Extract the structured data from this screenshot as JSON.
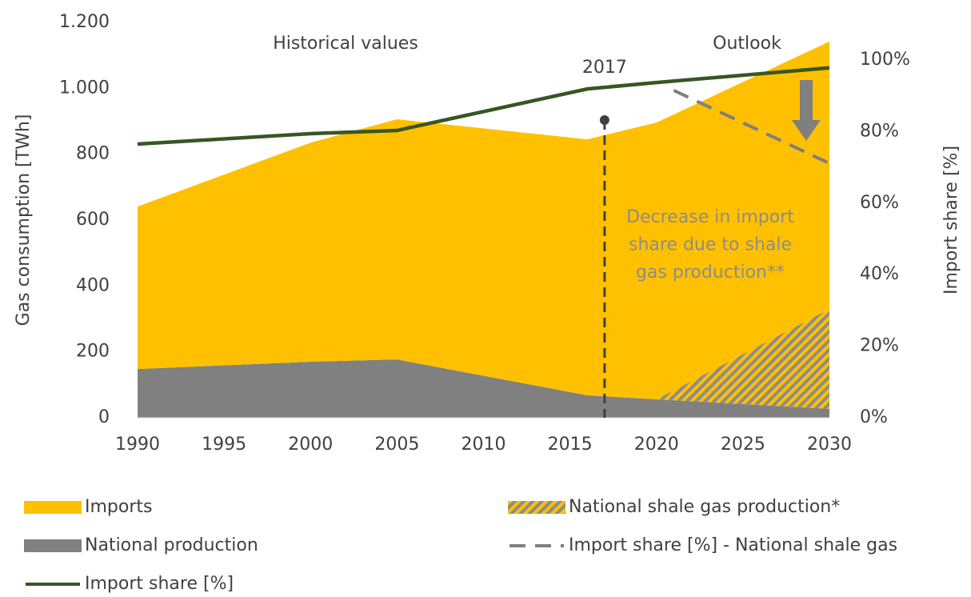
{
  "chart_data": {
    "type": "area",
    "xlabel": null,
    "ylabel": "Gas consumption [TWh]",
    "y2label": "Import share [%]",
    "x": [
      1990,
      2000,
      2005,
      2016,
      2020,
      2030
    ],
    "xlim": [
      1990,
      2030
    ],
    "xticks": [
      1990,
      1995,
      2000,
      2005,
      2010,
      2015,
      2020,
      2025,
      2030
    ],
    "ylim": [
      0,
      1200
    ],
    "yticks": [
      0,
      200,
      400,
      600,
      800,
      {
        "value": 1000,
        "label": "1.000"
      },
      {
        "value": 1200,
        "label": "1.200"
      }
    ],
    "y2lim": [
      0,
      110.5
    ],
    "y2ticks": [
      {
        "value": 0,
        "label": "0%"
      },
      {
        "value": 20,
        "label": "20%"
      },
      {
        "value": 40,
        "label": "40%"
      },
      {
        "value": 60,
        "label": "60%"
      },
      {
        "value": 80,
        "label": "80%"
      },
      {
        "value": 100,
        "label": "100%"
      }
    ],
    "series": [
      {
        "name": "National production",
        "color": "#808080",
        "kind": "area",
        "values": [
          148,
          170,
          177,
          68,
          56,
          27
        ]
      },
      {
        "name": "National shale gas production*",
        "color": "#808080",
        "kind": "area",
        "hatch": true,
        "values": [
          null,
          null,
          null,
          null,
          0,
          303
        ]
      },
      {
        "name": "Imports",
        "color": "#FFC000",
        "kind": "area",
        "values": [
          493,
          665,
          729,
          777,
          840,
          812
        ]
      },
      {
        "name": "Import share [%]",
        "color": "#375623",
        "kind": "line",
        "axis": "y2",
        "x": [
          1990,
          2000,
          2005,
          2016,
          2020,
          2030
        ],
        "values": [
          76.5,
          79.4,
          80.3,
          91.9,
          93.7,
          97.8
        ]
      },
      {
        "name": "Import share [%] - National shale gas",
        "color": "#7f7f7f",
        "kind": "line",
        "dash": true,
        "axis": "y2",
        "x": [
          2021,
          2030
        ],
        "values": [
          91.5,
          71.1
        ]
      }
    ],
    "annotations": {
      "historical": "Historical values",
      "outlook": "Outlook",
      "event_year": 2017,
      "decrease": [
        "Decrease in import",
        "share due to shale",
        "gas production**"
      ]
    }
  }
}
